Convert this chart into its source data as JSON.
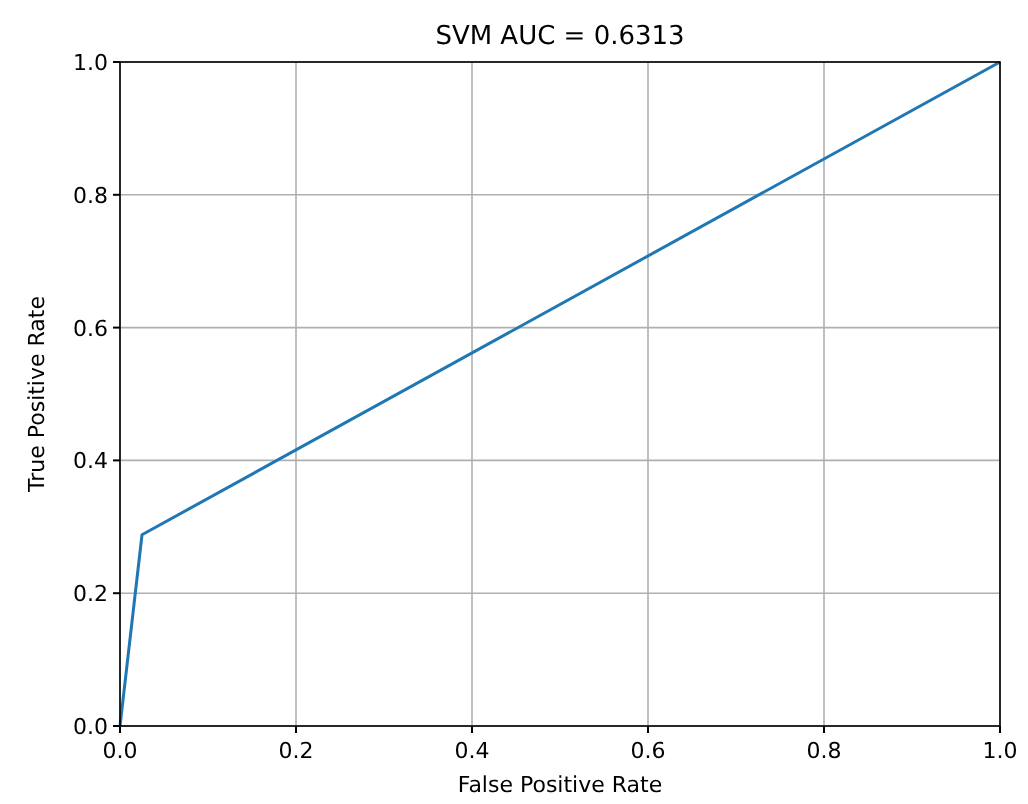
{
  "chart_data": {
    "type": "line",
    "title": "SVM AUC = 0.6313",
    "xlabel": "False Positive Rate",
    "ylabel": "True Positive Rate",
    "x": [
      0,
      0.025,
      1
    ],
    "series": [
      {
        "color": "#1f77b4",
        "values": [
          0,
          0.288,
          1
        ]
      }
    ],
    "xlim": [
      0,
      1
    ],
    "ylim": [
      0,
      1
    ],
    "xticks": [
      {
        "value": 0,
        "label": "0.0"
      },
      0.2,
      0.4,
      0.6,
      0.8,
      {
        "value": 1,
        "label": "1.0"
      }
    ],
    "yticks": [
      {
        "value": 0,
        "label": "0.0"
      },
      0.2,
      0.4,
      0.6,
      0.8,
      {
        "value": 1,
        "label": "1.0"
      }
    ],
    "grid": true,
    "marker": "none",
    "line_style": "solid"
  }
}
